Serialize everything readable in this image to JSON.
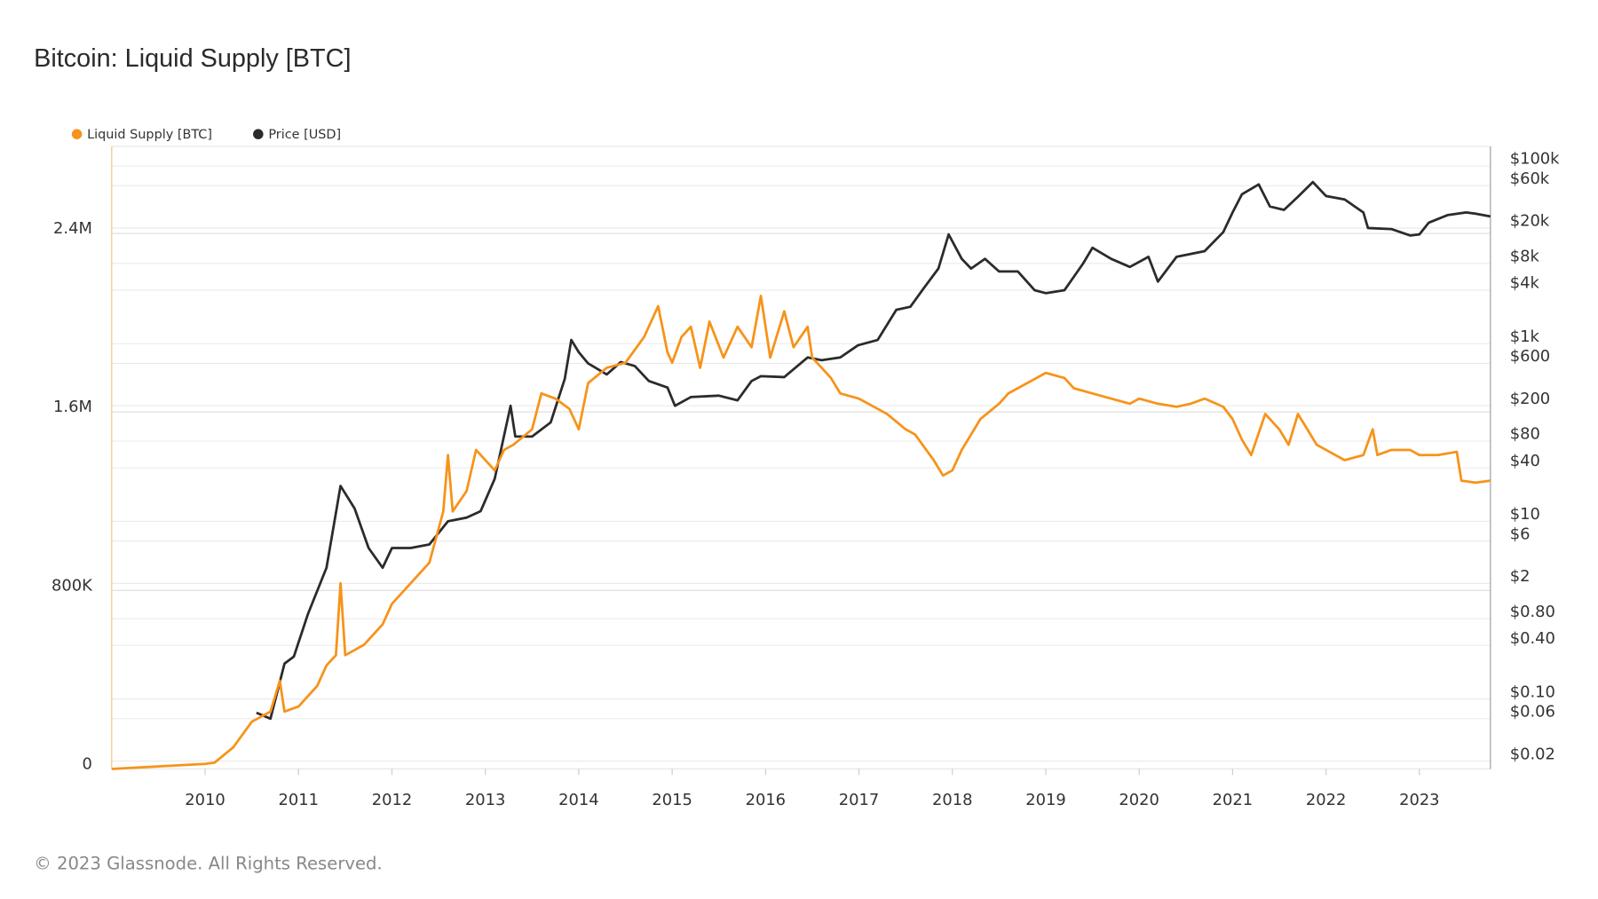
{
  "chart_data": {
    "type": "line",
    "title": "Bitcoin: Liquid Supply [BTC]",
    "legend_placement": "top-left",
    "grid": true,
    "x_ticks": [
      "2010",
      "2011",
      "2012",
      "2013",
      "2014",
      "2015",
      "2016",
      "2017",
      "2018",
      "2019",
      "2020",
      "2021",
      "2022",
      "2023"
    ],
    "xlim": [
      2009.0,
      2023.76
    ],
    "y_left": {
      "ticks": [
        "0",
        "800K",
        "1.6M",
        "2.4M"
      ],
      "tick_values": [
        0,
        800000,
        1600000,
        2400000
      ],
      "lim": [
        0,
        2790000
      ],
      "scale": "linear"
    },
    "y_right": {
      "ticks": [
        "$0.02",
        "$0.06",
        "$0.10",
        "$0.40",
        "$0.80",
        "$2",
        "$6",
        "$10",
        "$40",
        "$80",
        "$200",
        "$600",
        "$1k",
        "$4k",
        "$8k",
        "$20k",
        "$60k",
        "$100k"
      ],
      "tick_values": [
        0.02,
        0.06,
        0.1,
        0.4,
        0.8,
        2,
        6,
        10,
        40,
        80,
        200,
        600,
        1000,
        4000,
        8000,
        20000,
        60000,
        100000
      ],
      "lim": [
        0.0163,
        166000
      ],
      "scale": "log"
    },
    "series": [
      {
        "name": "Liquid Supply [BTC]",
        "color": "#f7931a",
        "axis": "left",
        "x": [
          2009.0,
          2010.0,
          2010.1,
          2010.3,
          2010.5,
          2010.7,
          2010.8,
          2010.85,
          2011.0,
          2011.2,
          2011.3,
          2011.4,
          2011.45,
          2011.5,
          2011.7,
          2011.9,
          2012.0,
          2012.2,
          2012.4,
          2012.55,
          2012.6,
          2012.65,
          2012.8,
          2012.9,
          2013.0,
          2013.1,
          2013.2,
          2013.3,
          2013.5,
          2013.6,
          2013.75,
          2013.9,
          2014.0,
          2014.1,
          2014.3,
          2014.5,
          2014.7,
          2014.85,
          2014.95,
          2015.0,
          2015.1,
          2015.2,
          2015.3,
          2015.4,
          2015.55,
          2015.7,
          2015.85,
          2015.95,
          2016.05,
          2016.2,
          2016.3,
          2016.45,
          2016.5,
          2016.6,
          2016.7,
          2016.8,
          2017.0,
          2017.2,
          2017.3,
          2017.5,
          2017.6,
          2017.8,
          2017.9,
          2018.0,
          2018.1,
          2018.3,
          2018.5,
          2018.6,
          2018.8,
          2019.0,
          2019.2,
          2019.3,
          2019.5,
          2019.7,
          2019.9,
          2020.0,
          2020.2,
          2020.4,
          2020.55,
          2020.7,
          2020.9,
          2021.0,
          2021.1,
          2021.2,
          2021.35,
          2021.5,
          2021.6,
          2021.7,
          2021.8,
          2021.9,
          2022.0,
          2022.2,
          2022.4,
          2022.5,
          2022.55,
          2022.7,
          2022.9,
          2023.0,
          2023.2,
          2023.4,
          2023.45,
          2023.6,
          2023.76
        ],
        "values": [
          0,
          23000,
          28000,
          97000,
          212000,
          257000,
          395000,
          257000,
          280000,
          372000,
          464000,
          510000,
          832000,
          510000,
          556000,
          648000,
          740000,
          832000,
          924000,
          1154000,
          1407000,
          1154000,
          1246000,
          1430000,
          1384000,
          1338000,
          1430000,
          1453000,
          1522000,
          1683000,
          1660000,
          1614000,
          1522000,
          1729000,
          1798000,
          1821000,
          1936000,
          2074000,
          1867000,
          1821000,
          1936000,
          1982000,
          1798000,
          2005000,
          1844000,
          1982000,
          1890000,
          2120000,
          1844000,
          2051000,
          1890000,
          1982000,
          1844000,
          1798000,
          1752000,
          1683000,
          1660000,
          1614000,
          1591000,
          1522000,
          1499000,
          1384000,
          1315000,
          1338000,
          1430000,
          1568000,
          1637000,
          1683000,
          1729000,
          1775000,
          1752000,
          1706000,
          1683000,
          1660000,
          1637000,
          1660000,
          1637000,
          1623000,
          1637000,
          1660000,
          1623000,
          1568000,
          1476000,
          1407000,
          1591000,
          1522000,
          1453000,
          1591000,
          1522000,
          1453000,
          1430000,
          1384000,
          1407000,
          1522000,
          1407000,
          1430000,
          1430000,
          1407000,
          1407000,
          1421000,
          1292000,
          1283000,
          1292000
        ]
      },
      {
        "name": "Price [USD]",
        "color": "#2b2b2b",
        "axis": "right",
        "x": [
          2010.55,
          2010.7,
          2010.85,
          2010.95,
          2011.1,
          2011.3,
          2011.45,
          2011.6,
          2011.75,
          2011.9,
          2012.0,
          2012.2,
          2012.4,
          2012.6,
          2012.8,
          2012.95,
          2013.1,
          2013.27,
          2013.32,
          2013.5,
          2013.7,
          2013.85,
          2013.92,
          2014.0,
          2014.1,
          2014.3,
          2014.45,
          2014.6,
          2014.75,
          2014.95,
          2015.03,
          2015.2,
          2015.5,
          2015.7,
          2015.85,
          2015.95,
          2016.2,
          2016.45,
          2016.6,
          2016.8,
          2016.99,
          2017.2,
          2017.4,
          2017.55,
          2017.7,
          2017.85,
          2017.96,
          2018.1,
          2018.2,
          2018.35,
          2018.5,
          2018.7,
          2018.88,
          2019.0,
          2019.2,
          2019.4,
          2019.5,
          2019.7,
          2019.9,
          2020.1,
          2020.2,
          2020.4,
          2020.7,
          2020.9,
          2021.0,
          2021.1,
          2021.28,
          2021.4,
          2021.55,
          2021.7,
          2021.86,
          2022.0,
          2022.2,
          2022.4,
          2022.45,
          2022.7,
          2022.9,
          2023.0,
          2023.1,
          2023.3,
          2023.5,
          2023.6,
          2023.76
        ],
        "values": [
          0.07,
          0.06,
          0.25,
          0.3,
          0.9,
          3,
          25,
          14,
          5,
          3,
          5,
          5,
          5.5,
          10,
          11,
          13,
          30,
          200,
          90,
          90,
          130,
          400,
          1100,
          800,
          600,
          450,
          620,
          560,
          380,
          320,
          200,
          250,
          260,
          230,
          380,
          430,
          420,
          700,
          650,
          700,
          960,
          1100,
          2400,
          2600,
          4300,
          7000,
          17000,
          9000,
          7000,
          9000,
          6500,
          6500,
          4000,
          3700,
          4000,
          8000,
          12000,
          9000,
          7300,
          9500,
          5000,
          9500,
          11000,
          18000,
          30000,
          48000,
          62000,
          35000,
          32000,
          45000,
          66000,
          46000,
          42000,
          30000,
          20000,
          19500,
          16500,
          17000,
          23000,
          28000,
          30000,
          29000,
          27000
        ]
      }
    ]
  },
  "footer": "© 2023 Glassnode. All Rights Reserved."
}
